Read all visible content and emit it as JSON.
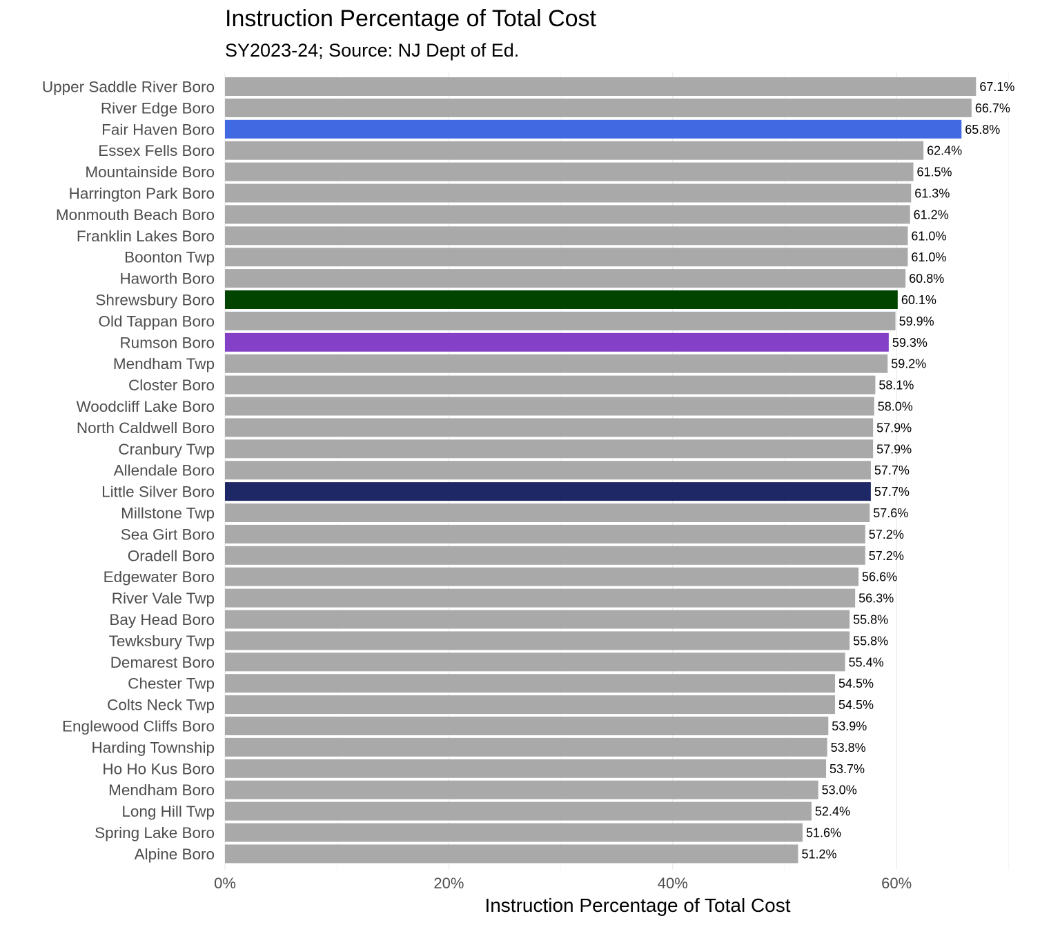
{
  "chart_data": {
    "type": "bar",
    "orientation": "horizontal",
    "title": "Instruction Percentage of Total Cost",
    "subtitle": "SY2023-24; Source: NJ Dept of Ed.",
    "xlabel": "Instruction Percentage of Total Cost",
    "ylabel": "",
    "xlim": [
      0,
      70
    ],
    "x_ticks": [
      0,
      20,
      40,
      60
    ],
    "x_tick_labels": [
      "0%",
      "20%",
      "40%",
      "60%"
    ],
    "grid": true,
    "legend": "none",
    "default_color": "#a9a9a9",
    "categories": [
      "Upper Saddle River Boro",
      "River Edge Boro",
      "Fair Haven Boro",
      "Essex Fells Boro",
      "Mountainside Boro",
      "Harrington Park Boro",
      "Monmouth Beach Boro",
      "Franklin Lakes Boro",
      "Boonton Twp",
      "Haworth Boro",
      "Shrewsbury Boro",
      "Old Tappan Boro",
      "Rumson Boro",
      "Mendham Twp",
      "Closter Boro",
      "Woodcliff Lake Boro",
      "North Caldwell Boro",
      "Cranbury Twp",
      "Allendale Boro",
      "Little Silver Boro",
      "Millstone Twp",
      "Sea Girt Boro",
      "Oradell Boro",
      "Edgewater Boro",
      "River Vale Twp",
      "Bay Head Boro",
      "Tewksbury Twp",
      "Demarest Boro",
      "Chester Twp",
      "Colts Neck Twp",
      "Englewood Cliffs Boro",
      "Harding Township",
      "Ho Ho Kus Boro",
      "Mendham Boro",
      "Long Hill Twp",
      "Spring Lake Boro",
      "Alpine Boro"
    ],
    "values": [
      67.1,
      66.7,
      65.8,
      62.4,
      61.5,
      61.3,
      61.2,
      61.0,
      61.0,
      60.8,
      60.1,
      59.9,
      59.3,
      59.2,
      58.1,
      58.0,
      57.9,
      57.9,
      57.7,
      57.7,
      57.6,
      57.2,
      57.2,
      56.6,
      56.3,
      55.8,
      55.8,
      55.4,
      54.5,
      54.5,
      53.9,
      53.8,
      53.7,
      53.0,
      52.4,
      51.6,
      51.2
    ],
    "value_labels": [
      "67.1%",
      "66.7%",
      "65.8%",
      "62.4%",
      "61.5%",
      "61.3%",
      "61.2%",
      "61.0%",
      "61.0%",
      "60.8%",
      "60.1%",
      "59.9%",
      "59.3%",
      "59.2%",
      "58.1%",
      "58.0%",
      "57.9%",
      "57.9%",
      "57.7%",
      "57.7%",
      "57.6%",
      "57.2%",
      "57.2%",
      "56.6%",
      "56.3%",
      "55.8%",
      "55.8%",
      "55.4%",
      "54.5%",
      "54.5%",
      "53.9%",
      "53.8%",
      "53.7%",
      "53.0%",
      "52.4%",
      "51.6%",
      "51.2%"
    ],
    "highlight_colors": {
      "Fair Haven Boro": "#4169e1",
      "Shrewsbury Boro": "#004400",
      "Rumson Boro": "#8440c6",
      "Little Silver Boro": "#1f2866"
    }
  }
}
